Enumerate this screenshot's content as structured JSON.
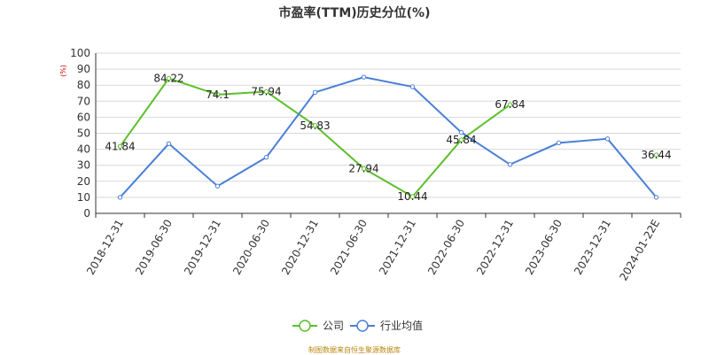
{
  "chart_data": {
    "type": "line",
    "title": "市盈率(TTM)历史分位(%)",
    "ylabel": "(%)",
    "ylim": [
      0,
      100
    ],
    "yticks": [
      0,
      10,
      20,
      30,
      40,
      50,
      60,
      70,
      80,
      90,
      100
    ],
    "categories": [
      "2018-12-31",
      "2019-06-30",
      "2019-12-31",
      "2020-06-30",
      "2020-12-31",
      "2021-06-30",
      "2021-12-31",
      "2022-06-30",
      "2022-12-31",
      "2023-06-30",
      "2023-12-31",
      "2024-01-22E"
    ],
    "series": [
      {
        "name": "公司",
        "color": "#5cbf2a",
        "values": [
          41.84,
          84.22,
          74.1,
          75.94,
          54.83,
          27.94,
          10.44,
          45.84,
          67.84,
          null,
          null,
          36.44
        ],
        "labels": [
          "41.84",
          "84.22",
          "74.1",
          "75.94",
          "54.83",
          "27.94",
          "10.44",
          "45.84",
          "67.84",
          null,
          null,
          "36.44"
        ]
      },
      {
        "name": "行业均值",
        "color": "#4a7fd6",
        "values": [
          10,
          43.5,
          17,
          35,
          75.5,
          85,
          79,
          50.5,
          30.5,
          44,
          46.5,
          10
        ]
      }
    ],
    "grid": true,
    "legend": "bottom"
  },
  "footer": {
    "source": "制图数据来自恒生聚源数据库"
  }
}
